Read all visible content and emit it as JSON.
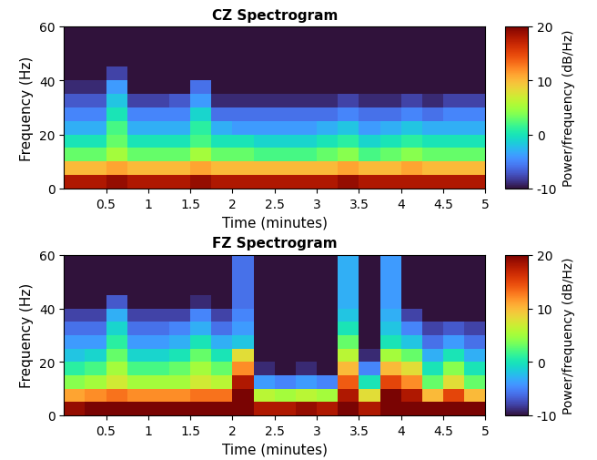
{
  "chart_data": [
    {
      "type": "heatmap",
      "title": "CZ Spectrogram",
      "x_label": "Time (minutes)",
      "y_label": "Frequency (Hz)",
      "x": [
        0.125,
        0.375,
        0.625,
        0.875,
        1.125,
        1.375,
        1.625,
        1.875,
        2.125,
        2.375,
        2.625,
        2.875,
        3.125,
        3.375,
        3.625,
        3.875,
        4.125,
        4.375,
        4.625,
        4.875
      ],
      "y": [
        2.5,
        7.5,
        12.5,
        17.5,
        22.5,
        27.5,
        32.5,
        37.5,
        42.5,
        47.5,
        52.5,
        57.5
      ],
      "xlim": [
        0,
        5
      ],
      "xticks": [
        0.5,
        1,
        1.5,
        2,
        2.5,
        3,
        3.5,
        4,
        4.5,
        5
      ],
      "ylim": [
        0,
        60
      ],
      "yticks": [
        0,
        20,
        40,
        60
      ],
      "color": "turbo",
      "colorbar_label": "Power/frequency (dB/Hz)",
      "colorbar_range": [
        -10,
        20
      ],
      "colorbar_ticks": [
        -10,
        0,
        10,
        20
      ],
      "values": [
        [
          18,
          18,
          19,
          18,
          18,
          18,
          19,
          18,
          18,
          18,
          18,
          18,
          18,
          19,
          18,
          18,
          18,
          18,
          18,
          18
        ],
        [
          10,
          10,
          11,
          10,
          10,
          10,
          11,
          10,
          10,
          10,
          10,
          10,
          10,
          11,
          10,
          10,
          11,
          10,
          10,
          10
        ],
        [
          3,
          3,
          5,
          3,
          3,
          3,
          5,
          3,
          3,
          2,
          2,
          2,
          3,
          4,
          2,
          3,
          4,
          3,
          3,
          3
        ],
        [
          0,
          0,
          3,
          0,
          0,
          0,
          2,
          0,
          0,
          -1,
          -1,
          -1,
          0,
          1,
          -1,
          0,
          1,
          0,
          0,
          0
        ],
        [
          -3,
          -3,
          2,
          -3,
          -3,
          -3,
          1,
          -3,
          -4,
          -4,
          -4,
          -4,
          -3,
          -2,
          -4,
          -3,
          -2,
          -3,
          -3,
          -3
        ],
        [
          -5,
          -5,
          0,
          -5,
          -5,
          -5,
          -1,
          -6,
          -6,
          -6,
          -6,
          -6,
          -6,
          -5,
          -6,
          -6,
          -5,
          -6,
          -5,
          -5
        ],
        [
          -7,
          -7,
          -2,
          -8,
          -8,
          -7,
          -4,
          -9,
          -9,
          -9,
          -9,
          -9,
          -9,
          -8,
          -9,
          -9,
          -8,
          -9,
          -8,
          -8
        ],
        [
          -9,
          -9,
          -4,
          -10,
          -10,
          -10,
          -6,
          -11,
          -11,
          -11,
          -11,
          -11,
          -11,
          -11,
          -11,
          -11,
          -10,
          -11,
          -11,
          -11
        ],
        [
          -12,
          -12,
          -8,
          -12,
          -12,
          -12,
          -10,
          -12,
          -12,
          -12,
          -12,
          -12,
          -12,
          -12,
          -12,
          -12,
          -12,
          -12,
          -12,
          -12
        ],
        [
          -12,
          -12,
          -12,
          -12,
          -12,
          -12,
          -12,
          -12,
          -12,
          -12,
          -12,
          -12,
          -12,
          -12,
          -12,
          -12,
          -12,
          -12,
          -12,
          -12
        ],
        [
          -12,
          -12,
          -12,
          -12,
          -12,
          -12,
          -12,
          -12,
          -12,
          -12,
          -12,
          -12,
          -12,
          -12,
          -12,
          -12,
          -12,
          -12,
          -12,
          -12
        ],
        [
          -12,
          -12,
          -12,
          -12,
          -12,
          -12,
          -12,
          -12,
          -12,
          -12,
          -12,
          -12,
          -12,
          -12,
          -12,
          -12,
          -12,
          -12,
          -12,
          -12
        ]
      ]
    },
    {
      "type": "heatmap",
      "title": "FZ Spectrogram",
      "x_label": "Time (minutes)",
      "y_label": "Frequency (Hz)",
      "x": [
        0.125,
        0.375,
        0.625,
        0.875,
        1.125,
        1.375,
        1.625,
        1.875,
        2.125,
        2.375,
        2.625,
        2.875,
        3.125,
        3.375,
        3.625,
        3.875,
        4.125,
        4.375,
        4.625,
        4.875
      ],
      "y": [
        2.5,
        7.5,
        12.5,
        17.5,
        22.5,
        27.5,
        32.5,
        37.5,
        42.5,
        47.5,
        52.5,
        57.5
      ],
      "xlim": [
        0,
        5
      ],
      "xticks": [
        0.5,
        1,
        1.5,
        2,
        2.5,
        3,
        3.5,
        4,
        4.5,
        5
      ],
      "ylim": [
        0,
        60
      ],
      "yticks": [
        0,
        20,
        40,
        60
      ],
      "color": "turbo",
      "colorbar_label": "Power/frequency (dB/Hz)",
      "colorbar_range": [
        -10,
        20
      ],
      "colorbar_ticks": [
        -10,
        0,
        10,
        20
      ],
      "values": [
        [
          19,
          20,
          20,
          20,
          20,
          20,
          20,
          21,
          25,
          18,
          18,
          19,
          18,
          22,
          18,
          25,
          24,
          20,
          22,
          20
        ],
        [
          11,
          12,
          13,
          12,
          12,
          12,
          13,
          13,
          22,
          6,
          5,
          6,
          5,
          18,
          8,
          20,
          18,
          10,
          15,
          10
        ],
        [
          4,
          5,
          7,
          5,
          5,
          5,
          7,
          6,
          18,
          -4,
          -5,
          -4,
          -5,
          14,
          0,
          15,
          12,
          3,
          8,
          3
        ],
        [
          1,
          2,
          5,
          2,
          2,
          3,
          5,
          3,
          12,
          -9,
          -10,
          -9,
          -10,
          10,
          -5,
          10,
          8,
          0,
          4,
          0
        ],
        [
          -2,
          -1,
          3,
          -1,
          -1,
          0,
          3,
          0,
          8,
          -12,
          -12,
          -12,
          -12,
          6,
          -9,
          5,
          3,
          -3,
          0,
          -3
        ],
        [
          -4,
          -4,
          1,
          -4,
          -4,
          -3,
          0,
          -3,
          -2,
          -12,
          -12,
          -12,
          -12,
          3,
          -12,
          0,
          -2,
          -6,
          -4,
          -6
        ],
        [
          -6,
          -6,
          -1,
          -6,
          -6,
          -5,
          -3,
          -6,
          -4,
          -12,
          -12,
          -12,
          -12,
          0,
          -12,
          -2,
          -5,
          -8,
          -7,
          -8
        ],
        [
          -8,
          -8,
          -3,
          -8,
          -8,
          -8,
          -5,
          -8,
          -5,
          -12,
          -12,
          -12,
          -12,
          -2,
          -12,
          -3,
          -8,
          -10,
          -10,
          -10
        ],
        [
          -11,
          -11,
          -7,
          -12,
          -11,
          -12,
          -9,
          -12,
          -6,
          -12,
          -12,
          -12,
          -12,
          -3,
          -12,
          -4,
          -10,
          -12,
          -12,
          -12
        ],
        [
          -12,
          -12,
          -12,
          -12,
          -12,
          -12,
          -12,
          -12,
          -6,
          -12,
          -12,
          -12,
          -12,
          -3,
          -12,
          -4,
          -12,
          -12,
          -12,
          -12
        ],
        [
          -12,
          -12,
          -12,
          -12,
          -12,
          -12,
          -12,
          -12,
          -6,
          -12,
          -12,
          -12,
          -12,
          -3,
          -12,
          -4,
          -12,
          -12,
          -12,
          -12
        ],
        [
          -12,
          -12,
          -12,
          -12,
          -12,
          -12,
          -12,
          -12,
          -6,
          -12,
          -12,
          -12,
          -12,
          -3,
          -12,
          -4,
          -12,
          -12,
          -12,
          -12
        ]
      ]
    }
  ]
}
